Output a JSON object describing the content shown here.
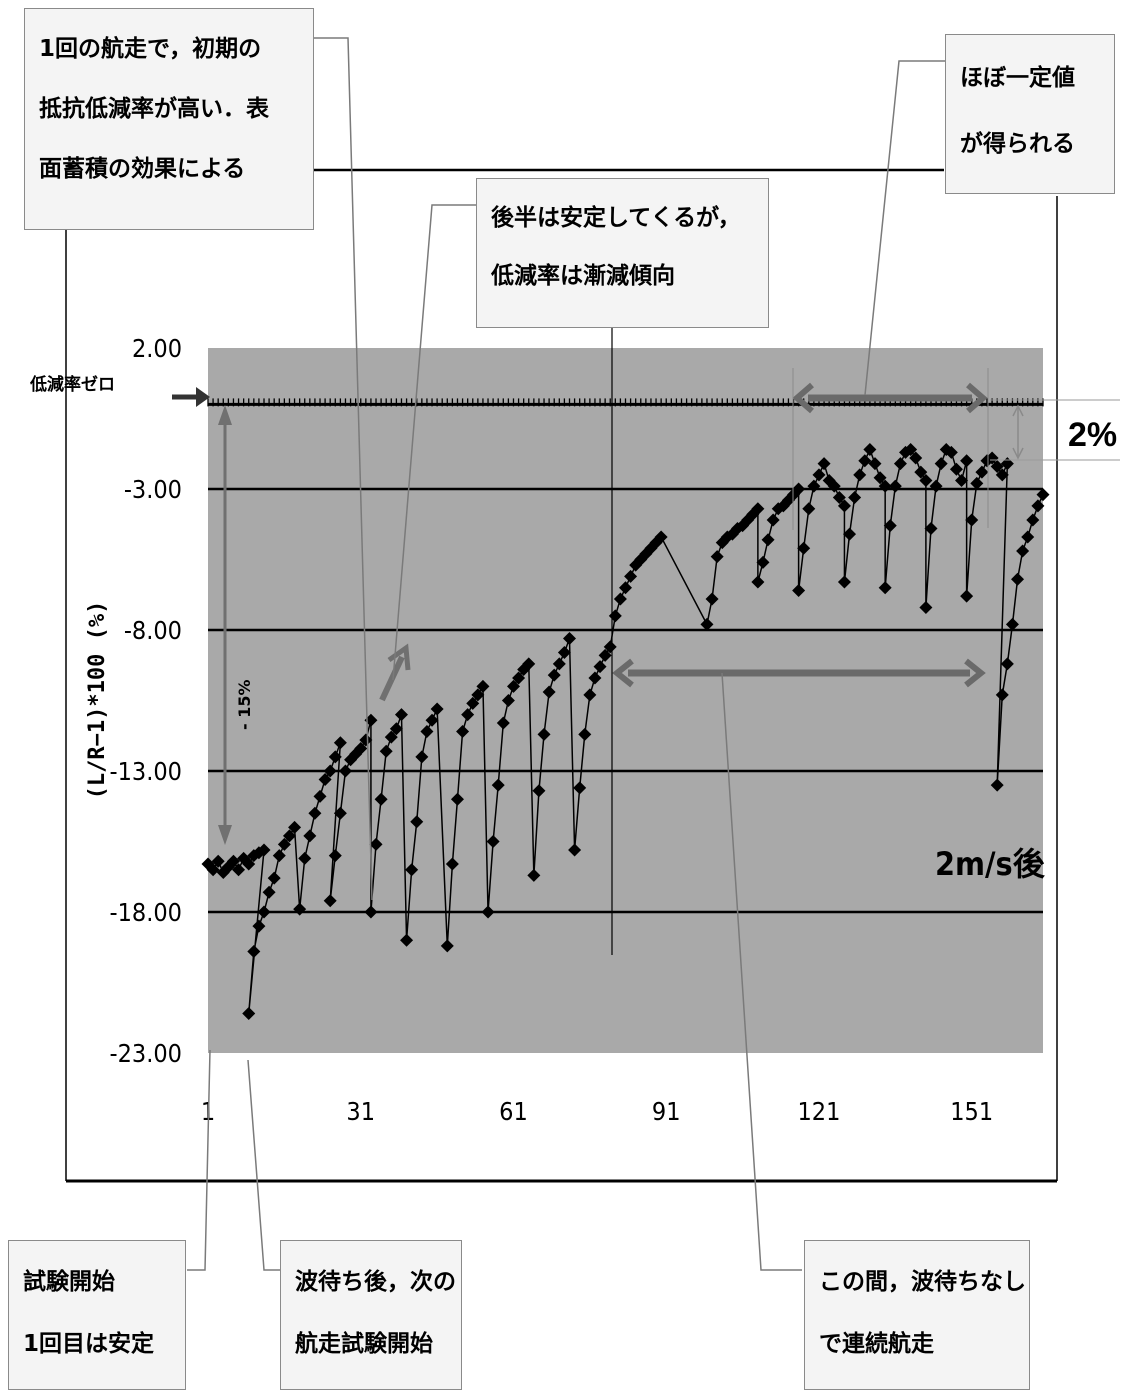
{
  "chart_data": {
    "type": "scatter",
    "ylabel": "(L/R−1)*100 (%)",
    "ylim": [
      -23,
      2
    ],
    "xlim": [
      1,
      165
    ],
    "y_ticks": [
      "2.00",
      "-3.00",
      "-8.00",
      "-13.00",
      "-18.00",
      "-23.00"
    ],
    "x_ticks": [
      "1",
      "31",
      "61",
      "91",
      "121",
      "151"
    ],
    "grid": true,
    "zero_line_label": "低減率ゼロ",
    "corner_label": "2m/s後",
    "arrow_label_15": "- 15%",
    "arrow_label_2": "2%",
    "points": [
      [
        1,
        -16.3
      ],
      [
        2,
        -16.5
      ],
      [
        3,
        -16.2
      ],
      [
        4,
        -16.6
      ],
      [
        5,
        -16.4
      ],
      [
        6,
        -16.2
      ],
      [
        7,
        -16.5
      ],
      [
        8,
        -16.1
      ],
      [
        9,
        -16.3
      ],
      [
        10,
        -16.0
      ],
      [
        11,
        -15.9
      ],
      [
        12,
        -15.8
      ],
      [
        9,
        -21.6
      ],
      [
        10,
        -19.4
      ],
      [
        11,
        -18.5
      ],
      [
        12,
        -18.0
      ],
      [
        13,
        -17.3
      ],
      [
        14,
        -16.8
      ],
      [
        15,
        -16.0
      ],
      [
        16,
        -15.6
      ],
      [
        17,
        -15.3
      ],
      [
        18,
        -15.0
      ],
      [
        19,
        -17.9
      ],
      [
        20,
        -16.1
      ],
      [
        21,
        -15.3
      ],
      [
        22,
        -14.5
      ],
      [
        23,
        -13.9
      ],
      [
        24,
        -13.3
      ],
      [
        25,
        -13.0
      ],
      [
        26,
        -12.5
      ],
      [
        27,
        -12.0
      ],
      [
        25,
        -17.6
      ],
      [
        26,
        -16.0
      ],
      [
        27,
        -14.5
      ],
      [
        28,
        -13.0
      ],
      [
        29,
        -12.6
      ],
      [
        30,
        -12.4
      ],
      [
        31,
        -12.2
      ],
      [
        32,
        -11.9
      ],
      [
        33,
        -11.2
      ],
      [
        33,
        -18.0
      ],
      [
        34,
        -15.6
      ],
      [
        35,
        -14.0
      ],
      [
        36,
        -12.3
      ],
      [
        37,
        -11.8
      ],
      [
        38,
        -11.5
      ],
      [
        39,
        -11.0
      ],
      [
        40,
        -19.0
      ],
      [
        41,
        -16.5
      ],
      [
        42,
        -14.8
      ],
      [
        43,
        -12.5
      ],
      [
        44,
        -11.6
      ],
      [
        45,
        -11.2
      ],
      [
        46,
        -10.8
      ],
      [
        48,
        -19.2
      ],
      [
        49,
        -16.3
      ],
      [
        50,
        -14.0
      ],
      [
        51,
        -11.6
      ],
      [
        52,
        -11.0
      ],
      [
        53,
        -10.6
      ],
      [
        54,
        -10.3
      ],
      [
        55,
        -10.0
      ],
      [
        56,
        -18.0
      ],
      [
        57,
        -15.5
      ],
      [
        58,
        -13.5
      ],
      [
        59,
        -11.3
      ],
      [
        60,
        -10.5
      ],
      [
        61,
        -10.0
      ],
      [
        62,
        -9.7
      ],
      [
        63,
        -9.4
      ],
      [
        64,
        -9.2
      ],
      [
        65,
        -16.7
      ],
      [
        66,
        -13.7
      ],
      [
        67,
        -11.7
      ],
      [
        68,
        -10.2
      ],
      [
        69,
        -9.6
      ],
      [
        70,
        -9.2
      ],
      [
        71,
        -8.8
      ],
      [
        72,
        -8.3
      ],
      [
        73,
        -15.8
      ],
      [
        74,
        -13.6
      ],
      [
        75,
        -11.7
      ],
      [
        76,
        -10.3
      ],
      [
        77,
        -9.7
      ],
      [
        78,
        -9.3
      ],
      [
        79,
        -8.9
      ],
      [
        80,
        -8.6
      ],
      [
        81,
        -7.5
      ],
      [
        82,
        -6.9
      ],
      [
        83,
        -6.5
      ],
      [
        84,
        -6.1
      ],
      [
        85,
        -5.7
      ],
      [
        86,
        -5.5
      ],
      [
        87,
        -5.3
      ],
      [
        88,
        -5.1
      ],
      [
        89,
        -4.9
      ],
      [
        90,
        -4.7
      ],
      [
        99,
        -7.8
      ],
      [
        100,
        -6.9
      ],
      [
        101,
        -5.4
      ],
      [
        102,
        -4.9
      ],
      [
        103,
        -4.7
      ],
      [
        104,
        -4.6
      ],
      [
        105,
        -4.4
      ],
      [
        106,
        -4.3
      ],
      [
        107,
        -4.1
      ],
      [
        108,
        -3.9
      ],
      [
        109,
        -3.7
      ],
      [
        109,
        -6.3
      ],
      [
        110,
        -5.6
      ],
      [
        111,
        -4.8
      ],
      [
        112,
        -4.1
      ],
      [
        113,
        -3.7
      ],
      [
        114,
        -3.6
      ],
      [
        115,
        -3.4
      ],
      [
        116,
        -3.2
      ],
      [
        117,
        -3.0
      ],
      [
        117,
        -6.6
      ],
      [
        118,
        -5.1
      ],
      [
        119,
        -3.7
      ],
      [
        120,
        -2.9
      ],
      [
        121,
        -2.5
      ],
      [
        122,
        -2.1
      ],
      [
        123,
        -2.7
      ],
      [
        124,
        -2.9
      ],
      [
        125,
        -3.3
      ],
      [
        126,
        -3.6
      ],
      [
        126,
        -6.3
      ],
      [
        127,
        -4.6
      ],
      [
        128,
        -3.3
      ],
      [
        129,
        -2.5
      ],
      [
        130,
        -2.0
      ],
      [
        131,
        -1.6
      ],
      [
        132,
        -2.1
      ],
      [
        133,
        -2.6
      ],
      [
        134,
        -2.9
      ],
      [
        134,
        -6.5
      ],
      [
        135,
        -4.3
      ],
      [
        136,
        -2.9
      ],
      [
        137,
        -2.1
      ],
      [
        138,
        -1.7
      ],
      [
        139,
        -1.6
      ],
      [
        140,
        -1.9
      ],
      [
        141,
        -2.4
      ],
      [
        142,
        -2.7
      ],
      [
        142,
        -7.2
      ],
      [
        143,
        -4.4
      ],
      [
        144,
        -2.9
      ],
      [
        145,
        -2.1
      ],
      [
        146,
        -1.6
      ],
      [
        147,
        -1.7
      ],
      [
        148,
        -2.3
      ],
      [
        149,
        -2.7
      ],
      [
        150,
        -2.0
      ],
      [
        150,
        -6.8
      ],
      [
        151,
        -4.1
      ],
      [
        152,
        -2.8
      ],
      [
        153,
        -2.4
      ],
      [
        154,
        -2.0
      ],
      [
        155,
        -1.9
      ],
      [
        156,
        -2.2
      ],
      [
        157,
        -2.5
      ],
      [
        158,
        -2.1
      ],
      [
        156,
        -13.5
      ],
      [
        157,
        -10.3
      ],
      [
        158,
        -9.2
      ],
      [
        159,
        -7.8
      ],
      [
        160,
        -6.2
      ],
      [
        161,
        -5.2
      ],
      [
        162,
        -4.7
      ],
      [
        163,
        -4.1
      ],
      [
        164,
        -3.6
      ],
      [
        165,
        -3.2
      ]
    ]
  },
  "callouts": {
    "top_left": [
      "1回の航走で，初期の",
      "抵抗低減率が高い．表",
      "面蓄積の効果による"
    ],
    "middle": [
      "後半は安定してくるが，",
      "低減率は漸減傾向"
    ],
    "top_right": [
      "ほぼ一定値",
      "が得られる"
    ],
    "bottom_left": [
      "試験開始",
      "1回目は安定"
    ],
    "bottom_middle": [
      "波待ち後，次の",
      "航走試験開始"
    ],
    "bottom_right": [
      "この間，波待ちなし",
      "で連続航走"
    ]
  },
  "colors": {
    "plot_bg": "#a9a9a9",
    "grid": "#000000",
    "marker": "#000000",
    "arrow_gray": "#707070",
    "callout_bg": "#f4f4f4",
    "callout_border": "#8a8a8a",
    "leader_line": "#7a7a7a"
  }
}
